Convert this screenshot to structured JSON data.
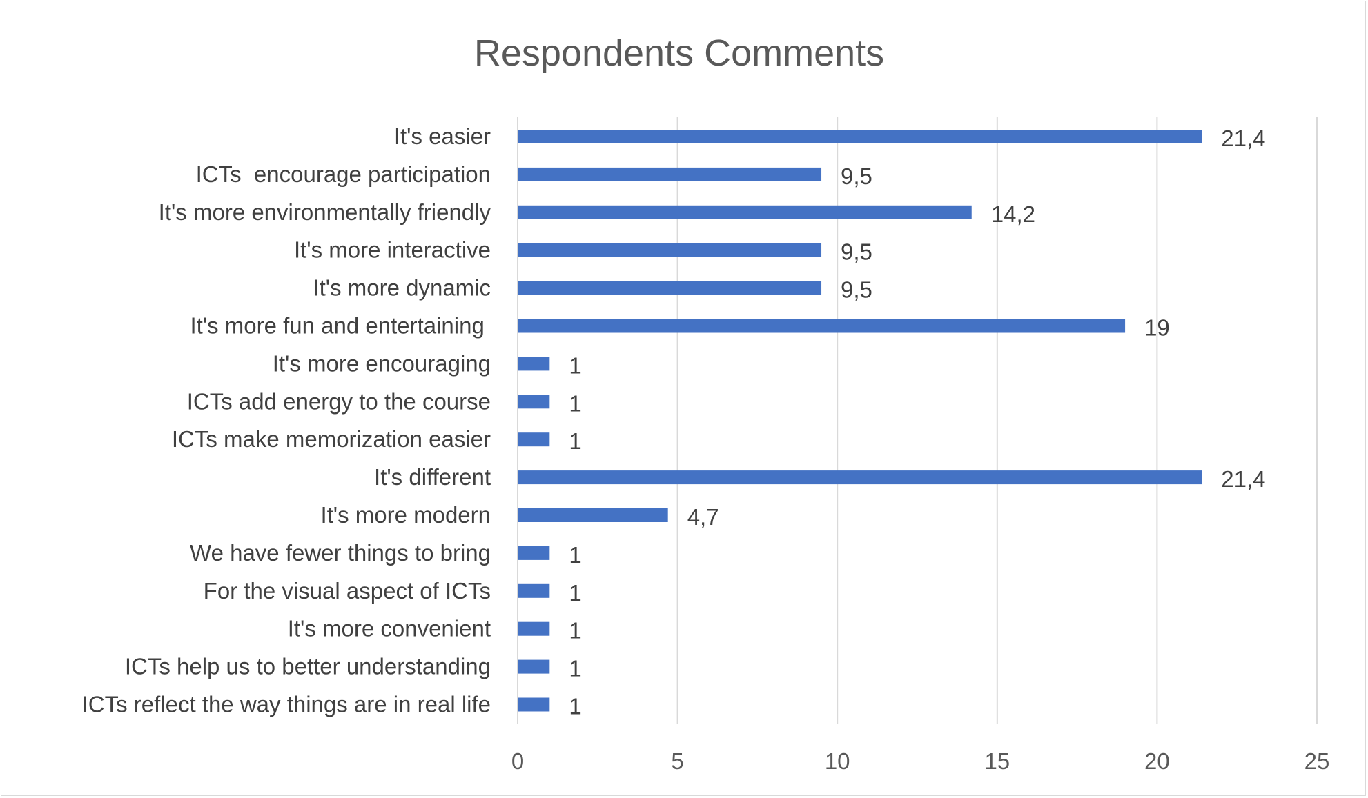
{
  "chart_data": {
    "type": "bar",
    "orientation": "horizontal",
    "title": "Respondents Comments",
    "xlabel": "",
    "ylabel": "",
    "xlim": [
      0,
      25
    ],
    "ticks": [
      "0",
      "5",
      "10",
      "15",
      "20",
      "25"
    ],
    "tick_values": [
      0,
      5,
      10,
      15,
      20,
      25
    ],
    "grid": true,
    "legend": "none",
    "colors": {
      "bar": "#4472c4",
      "grid": "#d9d9d9",
      "text": "#404040",
      "title": "#595959"
    },
    "categories": [
      "It's easier",
      "ICTs  encourage participation",
      "It's more environmentally friendly",
      "It's more interactive",
      "It's more dynamic",
      "It's more fun and entertaining ",
      "It's more encouraging",
      "ICTs add energy to the course",
      "ICTs make memorization easier",
      "It's different",
      "It's more modern",
      "We have fewer things to bring",
      "For the visual aspect of ICTs",
      "It's more convenient",
      "ICTs help us to better understanding",
      "ICTs reflect the way things are in real life"
    ],
    "values": [
      21.4,
      9.5,
      14.2,
      9.5,
      9.5,
      19,
      1,
      1,
      1,
      21.4,
      4.7,
      1,
      1,
      1,
      1,
      1
    ],
    "data_labels": [
      "21,4",
      "9,5",
      "14,2",
      "9,5",
      "9,5",
      "19",
      "1",
      "1",
      "1",
      "21,4",
      "4,7",
      "1",
      "1",
      "1",
      "1",
      "1"
    ]
  }
}
